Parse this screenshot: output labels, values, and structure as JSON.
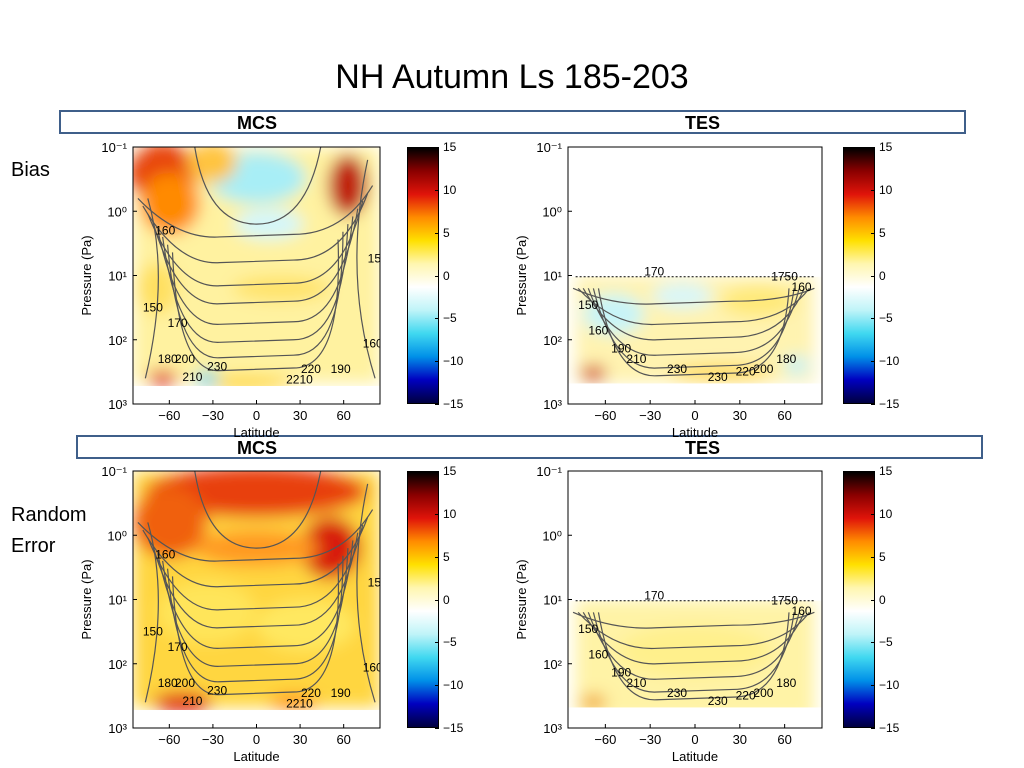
{
  "title": "NH Autumn Ls 185-203",
  "headers": {
    "top": {
      "left": "MCS",
      "right": "TES"
    },
    "bottom": {
      "left": "MCS",
      "right": "TES"
    }
  },
  "row_labels": {
    "bias": "Bias",
    "random_line1": "Random",
    "random_line2": "Error"
  },
  "colorbar": {
    "ticks": [
      "15",
      "10",
      "5",
      "0",
      "−5",
      "−10",
      "−15"
    ],
    "range": [
      -15,
      15
    ],
    "colors": [
      "#000000",
      "#8b0000",
      "#e0140a",
      "#ff8c00",
      "#ffe000",
      "#fff6b0",
      "#ffffff",
      "#bff4f8",
      "#40d8f0",
      "#0090e8",
      "#0000c0",
      "#000040"
    ]
  },
  "chart_data": [
    {
      "type": "heatmap",
      "name": "MCS Bias",
      "ylabel": "Pressure (Pa)",
      "xlabel": "Latitude",
      "xticks": [
        "-60",
        "-30",
        "0",
        "30",
        "60"
      ],
      "yticks": [
        "10⁻¹",
        "10⁰",
        "10¹",
        "10²",
        "10³"
      ],
      "xlim": [
        -85,
        85
      ],
      "ylim": [
        0.1,
        1000
      ],
      "yscale": "log",
      "contour_labels": [
        "160",
        "15",
        "150",
        "170",
        "180",
        "200",
        "160",
        "230",
        "220",
        "190",
        "210",
        "2210"
      ]
    },
    {
      "type": "heatmap",
      "name": "TES Bias",
      "ylabel": "Pressure (Pa)",
      "xlabel": "Latitude",
      "xticks": [
        "-60",
        "-30",
        "0",
        "30",
        "60"
      ],
      "yticks": [
        "10⁻¹",
        "10⁰",
        "10¹",
        "10²",
        "10³"
      ],
      "xlim": [
        -85,
        85
      ],
      "ylim": [
        0.1,
        1000
      ],
      "yscale": "log",
      "contour_labels": [
        "170",
        "1750",
        "160",
        "150",
        "160",
        "190",
        "210",
        "230",
        "230",
        "220",
        "200",
        "180"
      ]
    },
    {
      "type": "heatmap",
      "name": "MCS Random Error",
      "ylabel": "Pressure (Pa)",
      "xlabel": "Latitude",
      "xticks": [
        "-60",
        "-30",
        "0",
        "30",
        "60"
      ],
      "yticks": [
        "10⁻¹",
        "10⁰",
        "10¹",
        "10²",
        "10³"
      ],
      "xlim": [
        -85,
        85
      ],
      "ylim": [
        0.1,
        1000
      ],
      "yscale": "log",
      "contour_labels": [
        "160",
        "15",
        "150",
        "170",
        "180",
        "200",
        "160",
        "230",
        "220",
        "190",
        "210",
        "2210"
      ]
    },
    {
      "type": "heatmap",
      "name": "TES Random Error",
      "ylabel": "Pressure (Pa)",
      "xlabel": "Latitude",
      "xticks": [
        "-60",
        "-30",
        "0",
        "30",
        "60"
      ],
      "yticks": [
        "10⁻¹",
        "10⁰",
        "10¹",
        "10²",
        "10³"
      ],
      "xlim": [
        -85,
        85
      ],
      "ylim": [
        0.1,
        1000
      ],
      "yscale": "log",
      "contour_labels": [
        "170",
        "1750",
        "160",
        "150",
        "160",
        "190",
        "210",
        "230",
        "230",
        "220",
        "200",
        "180"
      ]
    }
  ]
}
